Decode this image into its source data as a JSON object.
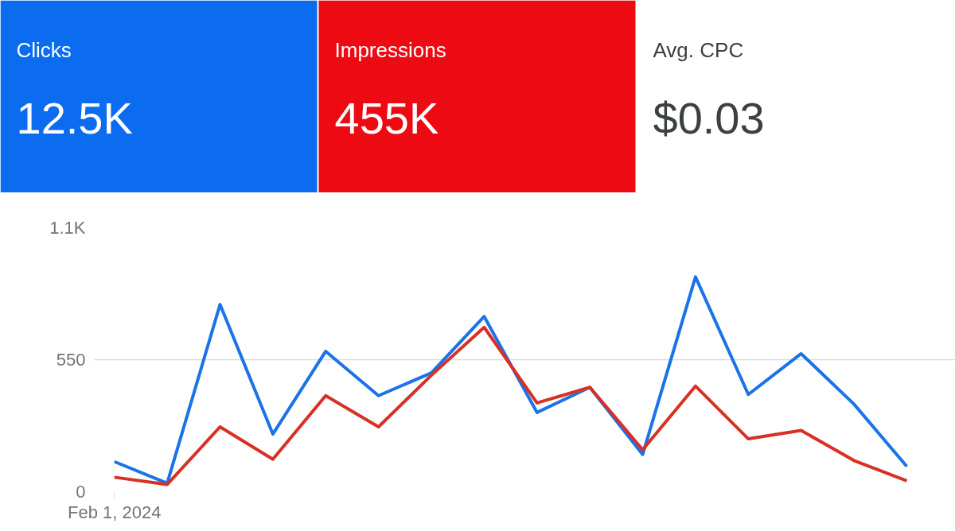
{
  "chart_data": {
    "type": "line",
    "annotations": [
      "Clicks",
      "12.5K",
      "Impressions",
      "455K",
      "Avg. CPC",
      "$0.03"
    ],
    "categories": [
      "Feb 1, 2024",
      null,
      null,
      null,
      null,
      null,
      null,
      null,
      null,
      null,
      null,
      null,
      null,
      null,
      null,
      null
    ],
    "series": [
      {
        "color": "#1a73e8",
        "values": [
          125,
          35,
          780,
          240,
          585,
          400,
          495,
          730,
          330,
          435,
          155,
          895,
          405,
          575,
          365,
          105
        ]
      },
      {
        "color": "#d93025",
        "values": [
          60,
          30,
          270,
          135,
          400,
          270,
          485,
          685,
          370,
          435,
          175,
          440,
          220,
          255,
          130,
          45
        ]
      }
    ],
    "ylim": [
      0,
      1100
    ],
    "yticks": [
      0,
      550,
      {
        "value": 1100,
        "label": "1.1K"
      }
    ],
    "grid": "y",
    "marker": "none",
    "line_style": "solid"
  }
}
